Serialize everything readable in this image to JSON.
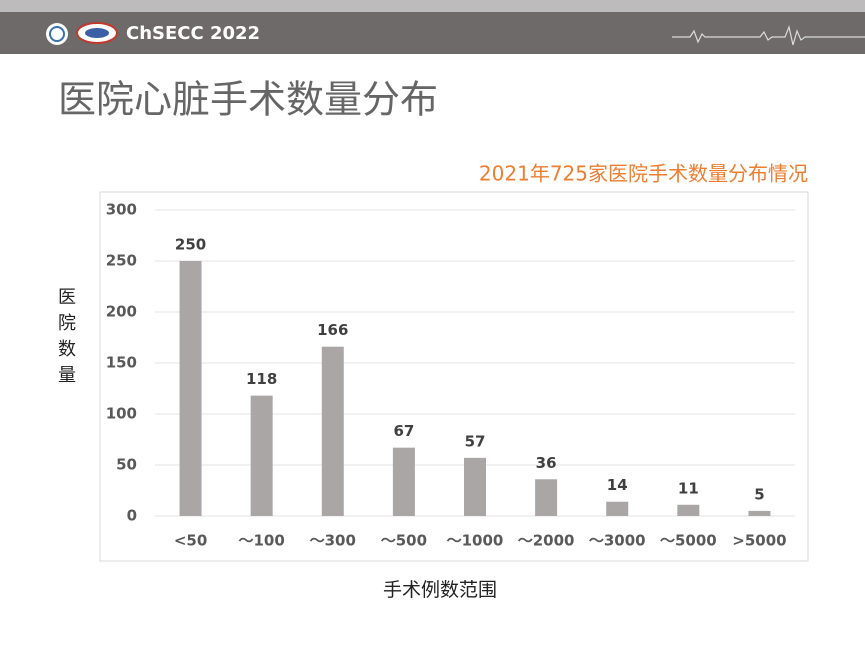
{
  "header": {
    "brand": "ChSECC 2022"
  },
  "slide_title": "医院心脏手术数量分布",
  "chart_data": {
    "type": "bar",
    "title": "2021年725家医院手术数量分布情况",
    "y_label": "医院数量",
    "x_label": "手术例数范围",
    "categories": [
      "<50",
      "～100",
      "～300",
      "～500",
      "～1000",
      "～2000",
      "～3000",
      "～5000",
      ">5000"
    ],
    "values": [
      250,
      118,
      166,
      67,
      57,
      36,
      14,
      11,
      5
    ],
    "color": "#aba6a6",
    "ylim": [
      0,
      300
    ],
    "yticks": [
      0,
      50,
      100,
      150,
      200,
      250,
      300
    ],
    "grid": true
  }
}
